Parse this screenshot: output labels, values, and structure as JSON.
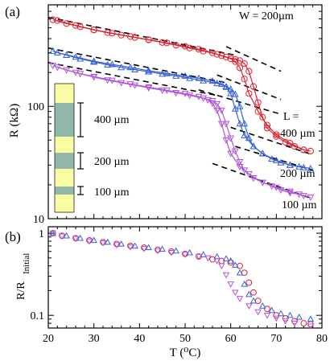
{
  "figure": {
    "panel_a_label": "(a)",
    "panel_b_label": "(b)"
  },
  "colors": {
    "L400": "#e0202c",
    "L200": "#3560d6",
    "L100": "#b155d9",
    "fit": "#000000",
    "strip_yellow": "#fbfba3",
    "strip_green": "#8fb8a8"
  },
  "chart_data": [
    {
      "panel": "a",
      "type": "scatter",
      "xlim": [
        20,
        80
      ],
      "ylim": [
        10,
        800
      ],
      "yscale": "log",
      "ylabel": "R (kΩ)",
      "xticks": [
        20,
        30,
        40,
        50,
        60,
        70,
        80
      ],
      "yticks": [
        10,
        100
      ],
      "annotations": {
        "width": "W = 200µm",
        "L_title": "L =",
        "L400": "400 µm",
        "L200": "200 µm",
        "L100": "100 µm",
        "inset_400": "400 µm",
        "inset_200": "200 µm",
        "inset_100": "100 µm"
      },
      "series": [
        {
          "key": "L400",
          "marker": "circle",
          "color": "#e0202c",
          "heating": [
            [
              21,
              590
            ],
            [
              24,
              545
            ],
            [
              27,
              510
            ],
            [
              30,
              478
            ],
            [
              33,
              452
            ],
            [
              36,
              430
            ],
            [
              39,
              410
            ],
            [
              42,
              390
            ],
            [
              45,
              370
            ],
            [
              48,
              350
            ],
            [
              51,
              330
            ],
            [
              54,
              310
            ],
            [
              57,
              290
            ],
            [
              59,
              275
            ],
            [
              61,
              262
            ],
            [
              62,
              255
            ],
            [
              63,
              240
            ],
            [
              64,
              205
            ],
            [
              65,
              150
            ],
            [
              66,
              108
            ],
            [
              67,
              80
            ],
            [
              68,
              64
            ],
            [
              70,
              54
            ],
            [
              72,
              48
            ],
            [
              74,
              44
            ],
            [
              76,
              41
            ],
            [
              77.5,
              40
            ]
          ],
          "cooling": [
            [
              22,
              580
            ],
            [
              26,
              525
            ],
            [
              30,
              480
            ],
            [
              34,
              447
            ],
            [
              38,
              418
            ],
            [
              42,
              392
            ],
            [
              46,
              367
            ],
            [
              50,
              342
            ],
            [
              53,
              322
            ],
            [
              56,
              300
            ],
            [
              58,
              282
            ],
            [
              60,
              265
            ],
            [
              61,
              250
            ],
            [
              62,
              220
            ],
            [
              63,
              175
            ],
            [
              64,
              130
            ],
            [
              66,
              90
            ],
            [
              68,
              68
            ],
            [
              70,
              56
            ],
            [
              73,
              47
            ],
            [
              76,
              41
            ]
          ]
        },
        {
          "key": "L200",
          "marker": "triangle-up",
          "color": "#3560d6",
          "heating": [
            [
              21,
              310
            ],
            [
              24,
              285
            ],
            [
              27,
              265
            ],
            [
              30,
              248
            ],
            [
              33,
              234
            ],
            [
              36,
              222
            ],
            [
              39,
              212
            ],
            [
              42,
              203
            ],
            [
              45,
              194
            ],
            [
              48,
              186
            ],
            [
              51,
              178
            ],
            [
              54,
              169
            ],
            [
              57,
              160
            ],
            [
              59,
              150
            ],
            [
              60,
              142
            ],
            [
              61,
              128
            ],
            [
              62,
              100
            ],
            [
              63,
              70
            ],
            [
              64,
              52
            ],
            [
              65,
              44
            ],
            [
              67,
              38
            ],
            [
              69,
              34
            ],
            [
              71,
              31.5
            ],
            [
              73,
              30
            ],
            [
              75,
              29
            ],
            [
              77.5,
              28
            ]
          ],
          "cooling": [
            [
              22,
              300
            ],
            [
              26,
              275
            ],
            [
              30,
              252
            ],
            [
              34,
              236
            ],
            [
              38,
              222
            ],
            [
              42,
              208
            ],
            [
              46,
              196
            ],
            [
              50,
              186
            ],
            [
              53,
              178
            ],
            [
              56,
              168
            ],
            [
              58,
              158
            ],
            [
              59,
              148
            ],
            [
              60,
              130
            ],
            [
              61,
              95
            ],
            [
              62,
              70
            ],
            [
              63,
              55
            ],
            [
              65,
              44
            ],
            [
              67,
              38
            ],
            [
              70,
              33
            ],
            [
              73,
              30
            ],
            [
              76,
              28.5
            ]
          ]
        },
        {
          "key": "L100",
          "marker": "triangle-down",
          "color": "#b155d9",
          "heating": [
            [
              21,
              230
            ],
            [
              24,
              210
            ],
            [
              27,
              195
            ],
            [
              30,
              182
            ],
            [
              33,
              171
            ],
            [
              36,
              162
            ],
            [
              39,
              154
            ],
            [
              42,
              146
            ],
            [
              45,
              139
            ],
            [
              48,
              132
            ],
            [
              51,
              125
            ],
            [
              54,
              118
            ],
            [
              56,
              112
            ],
            [
              57,
              105
            ],
            [
              58,
              92
            ],
            [
              59,
              70
            ],
            [
              60,
              52
            ],
            [
              61,
              40
            ],
            [
              62,
              32
            ],
            [
              63,
              27
            ],
            [
              65,
              23
            ],
            [
              67,
              21
            ],
            [
              69,
              19.5
            ],
            [
              71,
              18
            ],
            [
              73,
              17
            ],
            [
              75,
              16.5
            ],
            [
              77.5,
              15.5
            ]
          ],
          "cooling": [
            [
              22,
              222
            ],
            [
              26,
              200
            ],
            [
              30,
              184
            ],
            [
              34,
              170
            ],
            [
              38,
              158
            ],
            [
              42,
              148
            ],
            [
              46,
              139
            ],
            [
              50,
              130
            ],
            [
              53,
              122
            ],
            [
              55,
              114
            ],
            [
              56,
              106
            ],
            [
              57,
              92
            ],
            [
              58,
              70
            ],
            [
              59,
              50
            ],
            [
              60,
              38
            ],
            [
              62,
              29
            ],
            [
              64,
              25
            ],
            [
              67,
              21
            ],
            [
              70,
              19
            ],
            [
              73,
              17.5
            ],
            [
              76,
              16
            ]
          ]
        }
      ],
      "fit_lines": [
        {
          "x": [
            20,
            61
          ],
          "y": [
            620,
            285
          ]
        },
        {
          "x": [
            59,
            71
          ],
          "y": [
            340,
            205
          ]
        },
        {
          "x": [
            20,
            59
          ],
          "y": [
            330,
            162
          ]
        },
        {
          "x": [
            57,
            71
          ],
          "y": [
            190,
            115
          ]
        },
        {
          "x": [
            20,
            57
          ],
          "y": [
            245,
            125
          ]
        },
        {
          "x": [
            53,
            71
          ],
          "y": [
            140,
            85
          ]
        },
        {
          "x": [
            60,
            78
          ],
          "y": [
            65,
            37
          ]
        },
        {
          "x": [
            61,
            78
          ],
          "y": [
            44,
            27
          ]
        },
        {
          "x": [
            56,
            78
          ],
          "y": [
            31,
            15
          ]
        }
      ]
    },
    {
      "panel": "b",
      "type": "scatter",
      "xlim": [
        20,
        80
      ],
      "ylim": [
        0.07,
        1.2
      ],
      "yscale": "log",
      "xlabel": "T (⁰C)",
      "ylabel_main": "R/R",
      "ylabel_sub": "Initial",
      "xticks": [
        20,
        30,
        40,
        50,
        60,
        70,
        80
      ],
      "yticks": [
        0.1,
        1
      ],
      "series": [
        {
          "key": "L400",
          "marker": "circle",
          "color": "#e0202c",
          "points": [
            [
              21,
              1.0
            ],
            [
              23,
              0.93
            ],
            [
              26,
              0.87
            ],
            [
              29,
              0.82
            ],
            [
              32,
              0.78
            ],
            [
              35,
              0.74
            ],
            [
              38,
              0.7
            ],
            [
              41,
              0.67
            ],
            [
              44,
              0.63
            ],
            [
              47,
              0.6
            ],
            [
              50,
              0.56
            ],
            [
              53,
              0.52
            ],
            [
              56,
              0.48
            ],
            [
              58,
              0.46
            ],
            [
              60,
              0.44
            ],
            [
              62,
              0.4
            ],
            [
              63,
              0.33
            ],
            [
              64,
              0.25
            ],
            [
              65,
              0.19
            ],
            [
              66,
              0.15
            ],
            [
              68,
              0.12
            ],
            [
              70,
              0.1
            ],
            [
              72,
              0.092
            ],
            [
              74,
              0.085
            ],
            [
              76,
              0.08
            ],
            [
              77.5,
              0.078
            ]
          ]
        },
        {
          "key": "L200",
          "marker": "triangle-up",
          "color": "#3560d6",
          "points": [
            [
              21,
              1.0
            ],
            [
              24,
              0.93
            ],
            [
              27,
              0.87
            ],
            [
              30,
              0.82
            ],
            [
              33,
              0.78
            ],
            [
              36,
              0.74
            ],
            [
              39,
              0.7
            ],
            [
              42,
              0.67
            ],
            [
              45,
              0.64
            ],
            [
              48,
              0.61
            ],
            [
              51,
              0.58
            ],
            [
              54,
              0.55
            ],
            [
              57,
              0.52
            ],
            [
              59,
              0.49
            ],
            [
              60,
              0.46
            ],
            [
              61,
              0.41
            ],
            [
              62,
              0.33
            ],
            [
              63,
              0.24
            ],
            [
              64,
              0.18
            ],
            [
              65,
              0.15
            ],
            [
              67,
              0.13
            ],
            [
              69,
              0.115
            ],
            [
              71,
              0.105
            ],
            [
              73,
              0.1
            ],
            [
              75,
              0.095
            ],
            [
              77.5,
              0.09
            ]
          ]
        },
        {
          "key": "L100",
          "marker": "triangle-down",
          "color": "#b155d9",
          "points": [
            [
              21,
              1.0
            ],
            [
              23,
              0.92
            ],
            [
              26,
              0.86
            ],
            [
              29,
              0.8
            ],
            [
              32,
              0.76
            ],
            [
              35,
              0.72
            ],
            [
              38,
              0.68
            ],
            [
              41,
              0.65
            ],
            [
              44,
              0.61
            ],
            [
              47,
              0.58
            ],
            [
              50,
              0.55
            ],
            [
              53,
              0.52
            ],
            [
              55,
              0.5
            ],
            [
              57,
              0.46
            ],
            [
              58,
              0.4
            ],
            [
              59,
              0.31
            ],
            [
              60,
              0.24
            ],
            [
              61,
              0.19
            ],
            [
              62,
              0.16
            ],
            [
              64,
              0.13
            ],
            [
              66,
              0.11
            ],
            [
              68,
              0.1
            ],
            [
              70,
              0.092
            ],
            [
              72,
              0.085
            ],
            [
              74,
              0.08
            ],
            [
              77.5,
              0.074
            ]
          ]
        }
      ]
    }
  ]
}
